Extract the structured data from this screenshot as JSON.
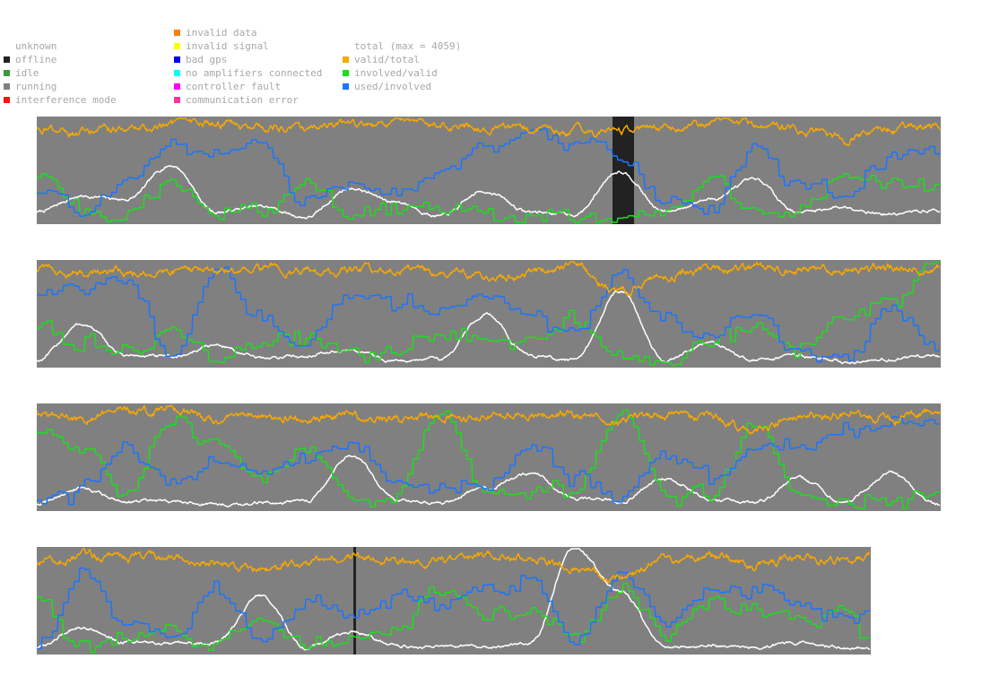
{
  "legend": {
    "status": [
      {
        "label": "unknown",
        "color": null,
        "icon": "none"
      },
      {
        "label": "offline",
        "color": "#222222",
        "icon": "square-icon"
      },
      {
        "label": "idle",
        "color": "#3a9a3a",
        "icon": "square-icon"
      },
      {
        "label": "running",
        "color": "#808080",
        "icon": "square-icon"
      },
      {
        "label": "interference mode",
        "color": "#ff1010",
        "icon": "square-icon"
      }
    ],
    "errors": [
      {
        "label": "invalid data",
        "color": "#ff7f00",
        "icon": "square-icon"
      },
      {
        "label": "invalid signal",
        "color": "#ffff00",
        "icon": "square-icon"
      },
      {
        "label": "bad gps",
        "color": "#0000ee",
        "icon": "square-icon"
      },
      {
        "label": "no amplifiers connected",
        "color": "#00ffff",
        "icon": "square-icon"
      },
      {
        "label": "controller fault",
        "color": "#ff00ff",
        "icon": "square-icon"
      },
      {
        "label": "communication error",
        "color": "#ff3399",
        "icon": "square-icon"
      }
    ],
    "metrics": [
      {
        "label": "total (max = 4059)",
        "color": null,
        "icon": "none"
      },
      {
        "label": "valid/total",
        "color": "#f7a800",
        "icon": "square-icon"
      },
      {
        "label": "involved/valid",
        "color": "#19e019",
        "icon": "square-icon"
      },
      {
        "label": "used/involved",
        "color": "#1a75ff",
        "icon": "square-icon"
      }
    ]
  },
  "chart_data": {
    "type": "line",
    "title": "",
    "total_max": 4059,
    "ylim": [
      0,
      1
    ],
    "grid": false,
    "legend_position": "top-left",
    "background_status": "running",
    "series_colors": {
      "valid/total": "#f7a800",
      "involved/valid": "#19e019",
      "used/involved": "#1a75ff",
      "total": "#ffffff"
    },
    "strips": [
      {
        "n_samples": 1008,
        "offline_intervals": [
          [
            642,
            666
          ]
        ],
        "series": [
          {
            "name": "valid/total",
            "x": [
              0,
              50,
              100,
              150,
              200,
              250,
              300,
              350,
              400,
              450,
              500,
              550,
              600,
              650,
              700,
              750,
              800,
              850,
              900,
              950,
              1007
            ],
            "values": [
              0.92,
              0.87,
              0.89,
              0.93,
              0.95,
              0.9,
              0.9,
              0.93,
              0.95,
              0.93,
              0.92,
              0.9,
              0.88,
              0.85,
              0.92,
              0.96,
              0.93,
              0.9,
              0.8,
              0.9,
              0.93
            ]
          },
          {
            "name": "involved/valid",
            "x": [
              0,
              50,
              100,
              150,
              200,
              250,
              300,
              350,
              400,
              450,
              500,
              550,
              600,
              650,
              700,
              750,
              800,
              850,
              900,
              950,
              1007
            ],
            "values": [
              0.45,
              0.1,
              0.06,
              0.4,
              0.07,
              0.1,
              0.42,
              0.08,
              0.12,
              0.1,
              0.08,
              0.06,
              0.05,
              0.05,
              0.12,
              0.4,
              0.1,
              0.12,
              0.5,
              0.35,
              0.35
            ]
          },
          {
            "name": "used/involved",
            "x": [
              0,
              50,
              100,
              150,
              200,
              250,
              300,
              350,
              400,
              450,
              500,
              550,
              600,
              650,
              700,
              750,
              800,
              850,
              900,
              950,
              1007
            ],
            "values": [
              0.3,
              0.15,
              0.4,
              0.75,
              0.65,
              0.8,
              0.2,
              0.35,
              0.25,
              0.42,
              0.75,
              0.85,
              0.8,
              0.63,
              0.2,
              0.12,
              0.7,
              0.35,
              0.25,
              0.6,
              0.65
            ]
          },
          {
            "name": "total",
            "x": [
              0,
              50,
              100,
              150,
              200,
              250,
              300,
              350,
              400,
              450,
              500,
              550,
              600,
              650,
              700,
              750,
              800,
              850,
              900,
              950,
              1007
            ],
            "values": [
              0.1,
              0.25,
              0.22,
              0.55,
              0.1,
              0.15,
              0.05,
              0.33,
              0.2,
              0.06,
              0.3,
              0.1,
              0.08,
              0.5,
              0.1,
              0.22,
              0.4,
              0.1,
              0.15,
              0.08,
              0.12
            ]
          }
        ]
      },
      {
        "n_samples": 1008,
        "offline_intervals": [],
        "series": [
          {
            "name": "valid/total",
            "x": [
              0,
              50,
              100,
              150,
              200,
              250,
              300,
              350,
              400,
              450,
              500,
              550,
              600,
              650,
              700,
              750,
              800,
              850,
              900,
              950,
              1007
            ],
            "values": [
              0.93,
              0.9,
              0.91,
              0.92,
              0.93,
              0.94,
              0.9,
              0.92,
              0.93,
              0.91,
              0.85,
              0.9,
              0.95,
              0.72,
              0.85,
              0.92,
              0.95,
              0.9,
              0.92,
              0.94,
              0.97
            ]
          },
          {
            "name": "involved/valid",
            "x": [
              0,
              50,
              100,
              150,
              200,
              250,
              300,
              350,
              400,
              450,
              500,
              550,
              600,
              650,
              700,
              750,
              800,
              850,
              900,
              950,
              1007
            ],
            "values": [
              0.38,
              0.2,
              0.15,
              0.3,
              0.1,
              0.15,
              0.25,
              0.12,
              0.18,
              0.28,
              0.2,
              0.3,
              0.42,
              0.1,
              0.05,
              0.3,
              0.35,
              0.2,
              0.5,
              0.6,
              1.0
            ]
          },
          {
            "name": "used/involved",
            "x": [
              0,
              50,
              100,
              150,
              200,
              250,
              300,
              350,
              400,
              450,
              500,
              550,
              600,
              650,
              700,
              750,
              800,
              850,
              900,
              950,
              1007
            ],
            "values": [
              0.7,
              0.75,
              0.8,
              0.1,
              0.9,
              0.45,
              0.2,
              0.7,
              0.6,
              0.55,
              0.7,
              0.5,
              0.35,
              0.9,
              0.45,
              0.25,
              0.48,
              0.1,
              0.1,
              0.55,
              0.12
            ]
          },
          {
            "name": "total",
            "x": [
              0,
              50,
              100,
              150,
              200,
              250,
              300,
              350,
              400,
              450,
              500,
              550,
              600,
              650,
              700,
              750,
              800,
              850,
              900,
              950,
              1007
            ],
            "values": [
              0.05,
              0.4,
              0.1,
              0.08,
              0.2,
              0.07,
              0.1,
              0.15,
              0.05,
              0.07,
              0.5,
              0.1,
              0.05,
              0.72,
              0.05,
              0.22,
              0.06,
              0.1,
              0.04,
              0.07,
              0.1
            ]
          }
        ]
      },
      {
        "n_samples": 1008,
        "offline_intervals": [],
        "series": [
          {
            "name": "valid/total",
            "x": [
              0,
              50,
              100,
              150,
              200,
              250,
              300,
              350,
              400,
              450,
              500,
              550,
              600,
              650,
              700,
              750,
              800,
              850,
              900,
              950,
              1007
            ],
            "values": [
              0.95,
              0.88,
              0.92,
              0.97,
              0.85,
              0.9,
              0.88,
              0.9,
              0.85,
              0.9,
              0.88,
              0.92,
              0.9,
              0.85,
              0.9,
              0.88,
              0.75,
              0.9,
              0.92,
              0.88,
              0.95
            ]
          },
          {
            "name": "involved/valid",
            "x": [
              0,
              50,
              100,
              150,
              200,
              250,
              300,
              350,
              400,
              450,
              500,
              550,
              600,
              650,
              700,
              750,
              800,
              850,
              900,
              950,
              1007
            ],
            "values": [
              0.75,
              0.6,
              0.2,
              0.85,
              0.6,
              0.3,
              0.55,
              0.1,
              0.08,
              0.95,
              0.1,
              0.15,
              0.2,
              0.97,
              0.2,
              0.1,
              0.85,
              0.1,
              0.05,
              0.08,
              0.15
            ]
          },
          {
            "name": "used/involved",
            "x": [
              0,
              50,
              100,
              150,
              200,
              250,
              300,
              350,
              400,
              450,
              500,
              550,
              600,
              650,
              700,
              750,
              800,
              850,
              900,
              950,
              1007
            ],
            "values": [
              0.1,
              0.2,
              0.55,
              0.25,
              0.45,
              0.35,
              0.5,
              0.65,
              0.3,
              0.2,
              0.2,
              0.6,
              0.3,
              0.1,
              0.5,
              0.3,
              0.55,
              0.6,
              0.75,
              0.8,
              0.85
            ]
          },
          {
            "name": "total",
            "x": [
              0,
              50,
              100,
              150,
              200,
              250,
              300,
              350,
              400,
              450,
              500,
              550,
              600,
              650,
              700,
              750,
              800,
              850,
              900,
              950,
              1007
            ],
            "values": [
              0.05,
              0.2,
              0.08,
              0.07,
              0.05,
              0.06,
              0.08,
              0.5,
              0.1,
              0.06,
              0.2,
              0.35,
              0.1,
              0.08,
              0.3,
              0.1,
              0.05,
              0.3,
              0.06,
              0.35,
              0.05
            ]
          }
        ]
      },
      {
        "n_samples": 930,
        "offline_intervals": [
          [
            353,
            356
          ]
        ],
        "series": [
          {
            "name": "valid/total",
            "x": [
              0,
              50,
              100,
              150,
              200,
              250,
              300,
              350,
              400,
              450,
              500,
              550,
              600,
              650,
              700,
              750,
              800,
              850,
              900,
              929
            ],
            "values": [
              0.85,
              0.92,
              0.93,
              0.9,
              0.85,
              0.8,
              0.88,
              0.92,
              0.9,
              0.88,
              0.93,
              0.91,
              0.8,
              0.72,
              0.9,
              0.92,
              0.85,
              0.92,
              0.9,
              0.93
            ]
          },
          {
            "name": "involved/valid",
            "x": [
              0,
              50,
              100,
              150,
              200,
              250,
              300,
              350,
              400,
              450,
              500,
              550,
              600,
              650,
              700,
              750,
              800,
              850,
              900,
              929
            ],
            "values": [
              0.55,
              0.05,
              0.15,
              0.2,
              0.1,
              0.3,
              0.05,
              0.1,
              0.2,
              0.6,
              0.4,
              0.35,
              0.15,
              0.6,
              0.2,
              0.5,
              0.4,
              0.3,
              0.45,
              0.05
            ]
          },
          {
            "name": "used/involved",
            "x": [
              0,
              50,
              100,
              150,
              200,
              250,
              300,
              350,
              400,
              450,
              500,
              550,
              600,
              650,
              700,
              750,
              800,
              850,
              900,
              929
            ],
            "values": [
              0.05,
              0.75,
              0.3,
              0.2,
              0.6,
              0.1,
              0.5,
              0.35,
              0.55,
              0.45,
              0.6,
              0.7,
              0.1,
              0.75,
              0.3,
              0.55,
              0.65,
              0.45,
              0.3,
              0.4
            ]
          },
          {
            "name": "total",
            "x": [
              0,
              50,
              100,
              150,
              200,
              250,
              300,
              350,
              400,
              450,
              500,
              550,
              600,
              650,
              700,
              750,
              800,
              850,
              900,
              929
            ],
            "values": [
              0.05,
              0.25,
              0.1,
              0.08,
              0.1,
              0.55,
              0.05,
              0.2,
              0.08,
              0.05,
              0.06,
              0.1,
              1.0,
              0.6,
              0.05,
              0.07,
              0.05,
              0.1,
              0.05,
              0.05
            ]
          }
        ]
      }
    ]
  }
}
